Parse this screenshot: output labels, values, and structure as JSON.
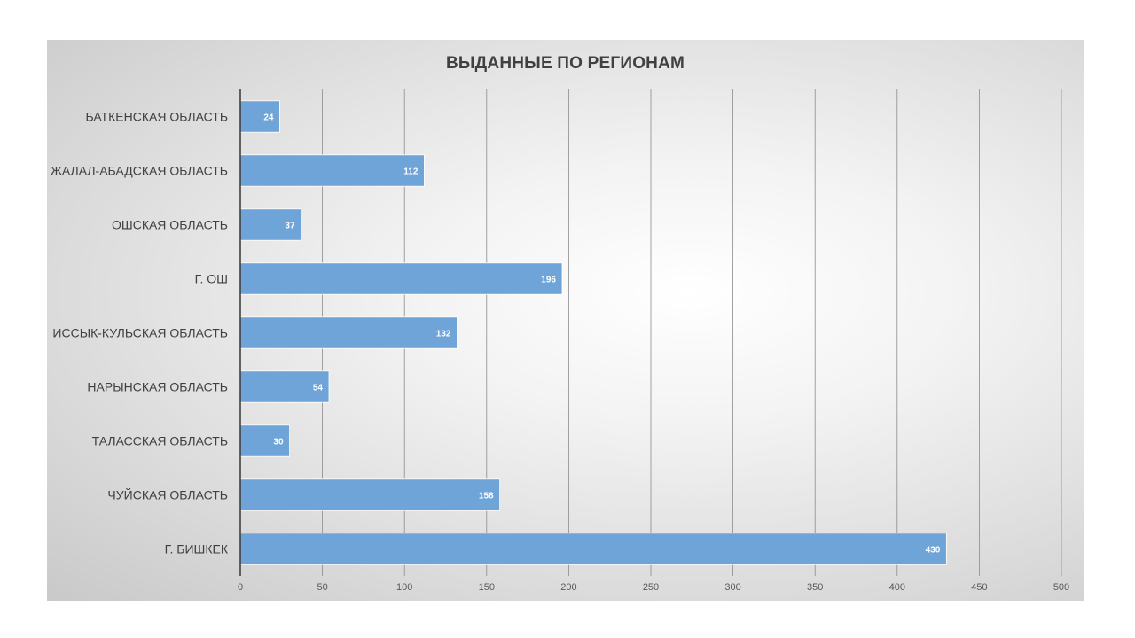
{
  "chart_data": {
    "type": "bar",
    "orientation": "horizontal",
    "title": "ВЫДАННЫЕ ПО РЕГИОНАМ",
    "categories": [
      "БАТКЕНСКАЯ ОБЛАСТЬ",
      "ЖАЛАЛ-АБАДСКАЯ ОБЛАСТЬ",
      "ОШСКАЯ ОБЛАСТЬ",
      "Г. ОШ",
      "ИССЫК-КУЛЬСКАЯ ОБЛАСТЬ",
      "НАРЫНСКАЯ ОБЛАСТЬ",
      "ТАЛАССКАЯ ОБЛАСТЬ",
      "ЧУЙСКАЯ ОБЛАСТЬ",
      "Г. БИШКЕК"
    ],
    "values": [
      24,
      112,
      37,
      196,
      132,
      54,
      30,
      158,
      430
    ],
    "xlim": [
      0,
      500
    ],
    "x_ticks": [
      0,
      50,
      100,
      150,
      200,
      250,
      300,
      350,
      400,
      450,
      500
    ],
    "grid": true,
    "data_labels": true,
    "colors": {
      "bar": "#6fa4d8",
      "gridline": "#8c8c8c",
      "axis": "#404040"
    }
  }
}
